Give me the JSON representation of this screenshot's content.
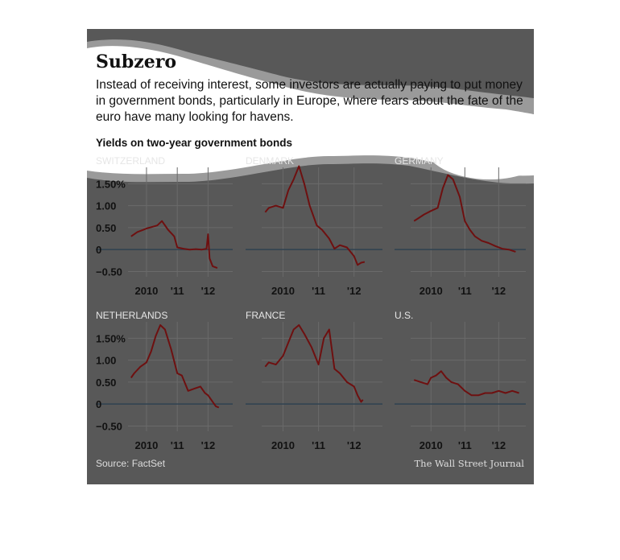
{
  "title": "Subzero",
  "subtitle": "Instead of receiving interest, some investors are actually paying to put money in government bonds, particularly in Europe, where fears about the fate of the euro have many looking for havens.",
  "subhead": "Yields on two-year government bonds",
  "source": "Source: FactSet",
  "credit": "The Wall Street Journal",
  "colors": {
    "background": "#585858",
    "line": "#6e1010",
    "zero_line": "#2f4250",
    "grid": "#6a6a6a",
    "blob": "#ffffff",
    "blob_outline": "#9a9a9a"
  },
  "chart_data": [
    {
      "type": "line",
      "title": "SWITZERLAND",
      "x": [
        2009.5,
        2009.7,
        2009.9,
        2010.0,
        2010.2,
        2010.35,
        2010.5,
        2010.7,
        2010.9,
        2011.0,
        2011.2,
        2011.4,
        2011.6,
        2011.8,
        2011.95,
        2012.0,
        2012.05,
        2012.15,
        2012.3
      ],
      "y": [
        0.3,
        0.4,
        0.45,
        0.48,
        0.52,
        0.55,
        0.65,
        0.45,
        0.3,
        0.05,
        0.02,
        0.0,
        0.01,
        0.0,
        0.02,
        0.35,
        -0.2,
        -0.38,
        -0.42
      ],
      "x_ticks": [
        "2010",
        "'11",
        "'12"
      ],
      "x_tick_values": [
        2010,
        2011,
        2012
      ],
      "y_ticks": [
        "1.50%",
        "1.00",
        "0.50",
        "0",
        "−0.50"
      ],
      "y_tick_values": [
        1.5,
        1.0,
        0.5,
        0,
        -0.5
      ],
      "xlim": [
        2009.4,
        2012.8
      ],
      "ylim": [
        -0.62,
        1.8
      ]
    },
    {
      "type": "line",
      "title": "DENMARK",
      "x": [
        2009.5,
        2009.6,
        2009.8,
        2010.0,
        2010.15,
        2010.3,
        2010.45,
        2010.6,
        2010.75,
        2010.95,
        2011.1,
        2011.3,
        2011.45,
        2011.6,
        2011.8,
        2012.0,
        2012.1,
        2012.2,
        2012.3
      ],
      "y": [
        0.85,
        0.95,
        1.0,
        0.95,
        1.35,
        1.6,
        1.9,
        1.5,
        1.0,
        0.55,
        0.45,
        0.25,
        0.02,
        0.1,
        0.05,
        -0.15,
        -0.35,
        -0.3,
        -0.28
      ],
      "x_ticks": [
        "2010",
        "'11",
        "'12"
      ],
      "x_tick_values": [
        2010,
        2011,
        2012
      ],
      "y_ticks": [],
      "y_tick_values": [
        1.5,
        1.0,
        0.5,
        0,
        -0.5
      ],
      "xlim": [
        2009.4,
        2012.8
      ],
      "ylim": [
        -0.62,
        1.8
      ]
    },
    {
      "type": "line",
      "title": "GERMANY",
      "x": [
        2009.5,
        2009.6,
        2009.8,
        2010.0,
        2010.2,
        2010.35,
        2010.5,
        2010.65,
        2010.85,
        2011.0,
        2011.15,
        2011.3,
        2011.5,
        2011.7,
        2011.9,
        2012.1,
        2012.3,
        2012.5
      ],
      "y": [
        0.65,
        0.7,
        0.8,
        0.88,
        0.95,
        1.4,
        1.7,
        1.6,
        1.2,
        0.65,
        0.45,
        0.3,
        0.2,
        0.15,
        0.08,
        0.02,
        0.0,
        -0.05
      ],
      "x_ticks": [
        "2010",
        "'11",
        "'12"
      ],
      "x_tick_values": [
        2010,
        2011,
        2012
      ],
      "y_ticks": [],
      "y_tick_values": [
        1.5,
        1.0,
        0.5,
        0,
        -0.5
      ],
      "xlim": [
        2009.4,
        2012.8
      ],
      "ylim": [
        -0.62,
        1.8
      ]
    },
    {
      "type": "line",
      "title": "NETHERLANDS",
      "x": [
        2009.5,
        2009.6,
        2009.8,
        2010.0,
        2010.15,
        2010.3,
        2010.45,
        2010.6,
        2010.8,
        2011.0,
        2011.15,
        2011.35,
        2011.55,
        2011.75,
        2011.9,
        2012.0,
        2012.1,
        2012.25,
        2012.35
      ],
      "y": [
        0.6,
        0.7,
        0.85,
        0.95,
        1.2,
        1.55,
        1.8,
        1.7,
        1.25,
        0.7,
        0.65,
        0.3,
        0.35,
        0.4,
        0.25,
        0.2,
        0.1,
        -0.05,
        -0.08
      ],
      "x_ticks": [
        "2010",
        "'11",
        "'12"
      ],
      "x_tick_values": [
        2010,
        2011,
        2012
      ],
      "y_ticks": [
        "1.50%",
        "1.00",
        "0.50",
        "0",
        "−0.50"
      ],
      "y_tick_values": [
        1.5,
        1.0,
        0.5,
        0,
        -0.5
      ],
      "xlim": [
        2009.4,
        2012.8
      ],
      "ylim": [
        -0.62,
        1.8
      ]
    },
    {
      "type": "line",
      "title": "FRANCE",
      "x": [
        2009.5,
        2009.6,
        2009.8,
        2010.0,
        2010.15,
        2010.3,
        2010.45,
        2010.6,
        2010.8,
        2011.0,
        2011.15,
        2011.3,
        2011.45,
        2011.6,
        2011.8,
        2012.0,
        2012.1,
        2012.2,
        2012.25
      ],
      "y": [
        0.85,
        0.95,
        0.9,
        1.1,
        1.4,
        1.7,
        1.8,
        1.6,
        1.3,
        0.9,
        1.5,
        1.7,
        0.8,
        0.7,
        0.5,
        0.4,
        0.2,
        0.05,
        0.1
      ],
      "x_ticks": [
        "2010",
        "'11",
        "'12"
      ],
      "x_tick_values": [
        2010,
        2011,
        2012
      ],
      "y_ticks": [],
      "y_tick_values": [
        1.5,
        1.0,
        0.5,
        0,
        -0.5
      ],
      "xlim": [
        2009.4,
        2012.8
      ],
      "ylim": [
        -0.62,
        1.8
      ]
    },
    {
      "type": "line",
      "title": "U.S.",
      "x": [
        2009.5,
        2009.7,
        2009.9,
        2010.0,
        2010.15,
        2010.3,
        2010.45,
        2010.6,
        2010.8,
        2011.0,
        2011.2,
        2011.4,
        2011.6,
        2011.8,
        2012.0,
        2012.2,
        2012.4,
        2012.6
      ],
      "y": [
        0.55,
        0.5,
        0.45,
        0.6,
        0.65,
        0.75,
        0.6,
        0.5,
        0.45,
        0.3,
        0.2,
        0.2,
        0.25,
        0.25,
        0.3,
        0.25,
        0.3,
        0.25
      ],
      "x_ticks": [
        "2010",
        "'11",
        "'12"
      ],
      "x_tick_values": [
        2010,
        2011,
        2012
      ],
      "y_ticks": [],
      "y_tick_values": [
        1.5,
        1.0,
        0.5,
        0,
        -0.5
      ],
      "xlim": [
        2009.4,
        2012.8
      ],
      "ylim": [
        -0.62,
        1.8
      ]
    }
  ]
}
